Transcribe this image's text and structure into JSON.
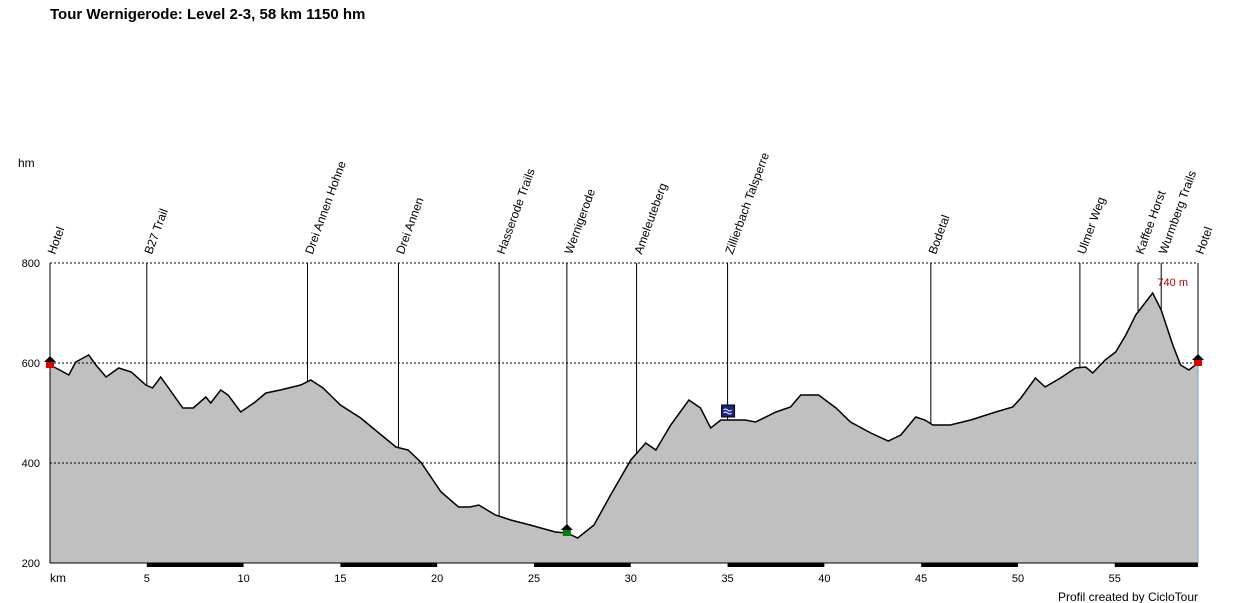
{
  "chart_data": {
    "type": "area",
    "title": "Tour Wernigerode: Level 2-3, 58 km 1150 hm",
    "x_label": "km",
    "y_label": "hm",
    "footer": "Profil created by CicloTour",
    "peak_label": "740 m",
    "fill": "#c0c0c0",
    "line_color": "#000000",
    "peak_color": "#b00000",
    "grid": true,
    "xlim": [
      0,
      59.3
    ],
    "xticks": [
      5,
      10,
      15,
      20,
      25,
      30,
      35,
      40,
      45,
      50,
      55
    ],
    "ylim": [
      200,
      800
    ],
    "yticks": [
      200,
      400,
      600,
      800
    ],
    "x": [
      0,
      0.5,
      0.97,
      1.33,
      2.0,
      2.37,
      2.9,
      3.55,
      4.2,
      4.95,
      5.3,
      5.72,
      6.2,
      6.86,
      7.4,
      8.05,
      8.3,
      8.82,
      9.2,
      9.85,
      10.6,
      11.15,
      11.9,
      12.95,
      13.47,
      14.1,
      15.0,
      16.05,
      16.8,
      17.87,
      18.5,
      19.15,
      20.2,
      21.1,
      21.7,
      22.15,
      23.0,
      23.8,
      24.8,
      26.1,
      26.7,
      27.26,
      28.1,
      28.96,
      30.0,
      30.77,
      31.3,
      32.06,
      33.0,
      33.6,
      34.13,
      34.65,
      35.9,
      36.45,
      37.5,
      38.25,
      38.78,
      39.7,
      40.6,
      41.35,
      42.4,
      43.3,
      43.95,
      44.72,
      45.2,
      45.6,
      46.5,
      47.56,
      48.85,
      49.73,
      50.15,
      50.9,
      51.4,
      52.2,
      52.97,
      53.5,
      53.86,
      54.5,
      55.05,
      55.57,
      56.08,
      56.6,
      56.96,
      57.4,
      58.0,
      58.4,
      58.83,
      59.3
    ],
    "values": [
      596,
      586,
      576,
      602,
      616,
      596,
      572,
      590,
      582,
      556,
      550,
      572,
      546,
      510,
      510,
      532,
      520,
      546,
      536,
      502,
      522,
      540,
      546,
      556,
      566,
      550,
      516,
      490,
      466,
      432,
      426,
      402,
      342,
      312,
      312,
      316,
      296,
      286,
      276,
      262,
      260,
      250,
      276,
      336,
      406,
      440,
      426,
      476,
      526,
      510,
      470,
      486,
      486,
      482,
      502,
      512,
      536,
      536,
      510,
      482,
      460,
      444,
      456,
      492,
      486,
      476,
      476,
      486,
      502,
      512,
      530,
      570,
      552,
      570,
      590,
      592,
      580,
      606,
      622,
      656,
      696,
      722,
      740,
      706,
      636,
      596,
      586,
      600
    ],
    "waypoints": [
      {
        "name": "Hotel",
        "km": 0
      },
      {
        "name": "B27 Trail",
        "km": 5.0
      },
      {
        "name": "Drei Annen Hohne",
        "km": 13.3
      },
      {
        "name": "Drei Annen",
        "km": 18.0
      },
      {
        "name": "Hasserode Trails",
        "km": 23.2
      },
      {
        "name": "Wernigerode",
        "km": 26.7
      },
      {
        "name": "Ameleuteberg",
        "km": 30.3
      },
      {
        "name": "Zillierbach Talsperre",
        "km": 35.0
      },
      {
        "name": "Bodetal",
        "km": 45.5
      },
      {
        "name": "Ulmer Weg",
        "km": 53.2
      },
      {
        "name": "Kaffee Horst",
        "km": 56.2
      },
      {
        "name": "Wurmberg Trails",
        "km": 57.4
      },
      {
        "name": "Hotel",
        "km": 59.3
      }
    ]
  }
}
